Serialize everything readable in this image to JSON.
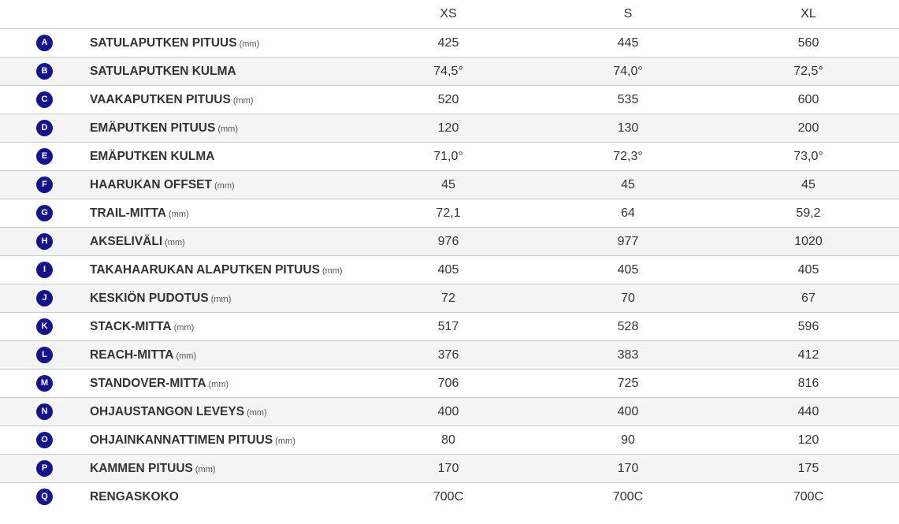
{
  "headers": [
    "XS",
    "S",
    "XL"
  ],
  "colors": {
    "badge": "#14138b",
    "row_alt": "#f4f4f4",
    "border": "#c9c9c9"
  },
  "rows": [
    {
      "letter": "A",
      "label": "SATULAPUTKEN PITUUS",
      "unit": "(mm)",
      "values": [
        "425",
        "445",
        "560"
      ]
    },
    {
      "letter": "B",
      "label": "SATULAPUTKEN KULMA",
      "unit": "",
      "values": [
        "74,5°",
        "74,0°",
        "72,5°"
      ]
    },
    {
      "letter": "C",
      "label": "VAAKAPUTKEN PITUUS",
      "unit": "(mm)",
      "values": [
        "520",
        "535",
        "600"
      ]
    },
    {
      "letter": "D",
      "label": "EMÄPUTKEN PITUUS",
      "unit": "(mm)",
      "values": [
        "120",
        "130",
        "200"
      ]
    },
    {
      "letter": "E",
      "label": "EMÄPUTKEN KULMA",
      "unit": "",
      "values": [
        "71,0°",
        "72,3°",
        "73,0°"
      ]
    },
    {
      "letter": "F",
      "label": "HAARUKAN OFFSET",
      "unit": "(mm)",
      "values": [
        "45",
        "45",
        "45"
      ]
    },
    {
      "letter": "G",
      "label": "TRAIL-MITTA",
      "unit": "(mm)",
      "values": [
        "72,1",
        "64",
        "59,2"
      ]
    },
    {
      "letter": "H",
      "label": "AKSELIVÄLI",
      "unit": "(mm)",
      "values": [
        "976",
        "977",
        "1020"
      ]
    },
    {
      "letter": "I",
      "label": "TAKAHAARUKAN ALAPUTKEN PITUUS",
      "unit": "(mm)",
      "values": [
        "405",
        "405",
        "405"
      ]
    },
    {
      "letter": "J",
      "label": "KESKIÖN PUDOTUS",
      "unit": "(mm)",
      "values": [
        "72",
        "70",
        "67"
      ]
    },
    {
      "letter": "K",
      "label": "STACK-MITTA",
      "unit": "(mm)",
      "values": [
        "517",
        "528",
        "596"
      ]
    },
    {
      "letter": "L",
      "label": "REACH-MITTA",
      "unit": "(mm)",
      "values": [
        "376",
        "383",
        "412"
      ]
    },
    {
      "letter": "M",
      "label": "STANDOVER-MITTA",
      "unit": "(mm)",
      "values": [
        "706",
        "725",
        "816"
      ]
    },
    {
      "letter": "N",
      "label": "OHJAUSTANGON LEVEYS",
      "unit": "(mm)",
      "values": [
        "400",
        "400",
        "440"
      ]
    },
    {
      "letter": "O",
      "label": "OHJAINKANNATTIMEN PITUUS",
      "unit": "(mm)",
      "values": [
        "80",
        "90",
        "120"
      ]
    },
    {
      "letter": "P",
      "label": "KAMMEN PITUUS",
      "unit": "(mm)",
      "values": [
        "170",
        "170",
        "175"
      ]
    },
    {
      "letter": "Q",
      "label": "RENGASKOKO",
      "unit": "",
      "values": [
        "700C",
        "700C",
        "700C"
      ]
    }
  ]
}
